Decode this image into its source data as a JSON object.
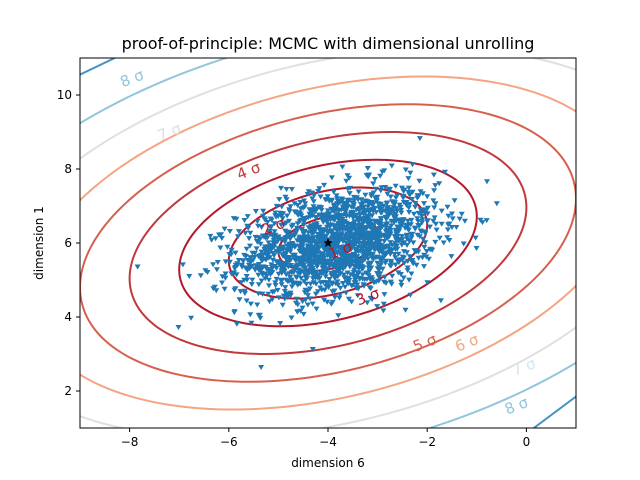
{
  "chart_data": {
    "type": "scatter",
    "title": "proof-of-principle: MCMC with dimensional unrolling",
    "xlabel": "dimension 6",
    "ylabel": "dimension 1",
    "xlim": [
      -9,
      1
    ],
    "ylim": [
      1,
      11
    ],
    "xticks": [
      -8,
      -6,
      -4,
      -2,
      0
    ],
    "yticks": [
      2,
      4,
      6,
      8,
      10
    ],
    "grid": false,
    "legend": "none",
    "center": [
      -4,
      6
    ],
    "contours": {
      "sigma_x": 1.0,
      "sigma_y": 0.75,
      "correlation": 0.32,
      "levels": [
        {
          "k": 1,
          "label": "1 σ",
          "color": "#b2182b",
          "label_pos": [
            -3.75,
            5.8
          ]
        },
        {
          "k": 2,
          "label": "2 σ",
          "color": "#b2182b",
          "label_pos": [
            -5.1,
            6.45
          ]
        },
        {
          "k": 3,
          "label": "3 σ",
          "color": "#b2182b",
          "label_pos": [
            -3.2,
            4.55
          ]
        },
        {
          "k": 4,
          "label": "4 σ",
          "color": "#c0393b",
          "label_pos": [
            -5.6,
            7.95
          ]
        },
        {
          "k": 5,
          "label": "5 σ",
          "color": "#d6604d",
          "label_pos": [
            -2.05,
            3.3
          ]
        },
        {
          "k": 6,
          "label": "6 σ",
          "color": "#f4a582",
          "label_pos": [
            -1.2,
            3.3
          ]
        },
        {
          "k": 7,
          "label": "7 σ",
          "color": "#e0e0e0",
          "label_pos": [
            -7.2,
            9.0
          ]
        },
        {
          "k": 8,
          "label": "8 σ",
          "color": "#92c5de",
          "label_pos": [
            -7.95,
            10.45
          ]
        }
      ],
      "outer_label_pos": [
        {
          "k": 7,
          "label": "7 σ",
          "color": "#d1e5f0",
          "label_pos": [
            -0.05,
            2.65
          ]
        },
        {
          "k": 8,
          "label": "8 σ",
          "color": "#92c5de",
          "label_pos": [
            -0.2,
            1.6
          ]
        }
      ],
      "corner_lines_color": "#4393c3"
    },
    "markers": {
      "sample_color": "#1f77b4",
      "sample_marker": "triangle-down",
      "sample_count": 1800,
      "center_marker": "star",
      "center_color": "#000000"
    }
  }
}
